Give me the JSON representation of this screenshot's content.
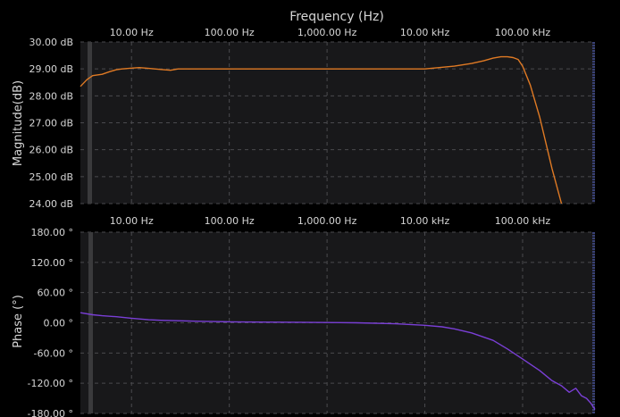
{
  "chart_data": [
    {
      "type": "line",
      "xlabel": "Frequency (Hz)",
      "ylabel": "Magnitude(dB)",
      "xscale": "log",
      "xlim": [
        3,
        550000
      ],
      "ylim": [
        24,
        30
      ],
      "grid": true,
      "x_ticks": [
        10,
        100,
        1000,
        10000,
        100000
      ],
      "x_tick_labels": [
        "10.00 Hz",
        "100.00 Hz",
        "1,000.00 Hz",
        "10.00 kHz",
        "100.00 kHz"
      ],
      "y_ticks": [
        30,
        29,
        28,
        27,
        26,
        25,
        24
      ],
      "y_tick_labels": [
        "30.00 dB",
        "29.00 dB",
        "28.00 dB",
        "27.00 dB",
        "26.00 dB",
        "25.00 dB",
        "24.00 dB"
      ],
      "series": [
        {
          "color": "#e07a24",
          "x": [
            3,
            3.5,
            4,
            5,
            6,
            7,
            8,
            10,
            12,
            15,
            20,
            25,
            30,
            40,
            50,
            70,
            100,
            200,
            500,
            1000,
            2000,
            5000,
            10000,
            20000,
            30000,
            40000,
            50000,
            60000,
            70000,
            80000,
            90000,
            100000,
            120000,
            150000,
            200000,
            250000
          ],
          "y": [
            28.35,
            28.6,
            28.75,
            28.8,
            28.9,
            28.97,
            29.0,
            29.03,
            29.05,
            29.02,
            28.98,
            28.95,
            29.0,
            29.0,
            29.0,
            29.0,
            29.0,
            29.0,
            29.0,
            29.0,
            29.0,
            29.0,
            29.0,
            29.1,
            29.2,
            29.3,
            29.4,
            29.45,
            29.45,
            29.42,
            29.35,
            29.1,
            28.4,
            27.2,
            25.3,
            24.0
          ]
        }
      ]
    },
    {
      "type": "line",
      "ylabel": "Phase (°)",
      "xscale": "log",
      "xlim": [
        3,
        550000
      ],
      "ylim": [
        -180,
        180
      ],
      "grid": true,
      "x_ticks": [
        10,
        100,
        1000,
        10000,
        100000
      ],
      "x_tick_labels": [
        "10.00 Hz",
        "100.00 Hz",
        "1,000.00 Hz",
        "10.00 kHz",
        "100.00 kHz"
      ],
      "y_ticks": [
        180,
        120,
        60,
        0,
        -60,
        -120,
        -180
      ],
      "y_tick_labels": [
        "180.00 °",
        "120.00 °",
        "60.00 °",
        "0.00 °",
        "-60.00 °",
        "-120.00 °",
        "-180.00 °"
      ],
      "series": [
        {
          "color": "#7a3fd6",
          "x": [
            3,
            4,
            5,
            7,
            10,
            15,
            20,
            30,
            50,
            70,
            100,
            200,
            500,
            1000,
            2000,
            5000,
            10000,
            15000,
            20000,
            30000,
            50000,
            70000,
            100000,
            150000,
            200000,
            250000,
            300000,
            350000,
            400000,
            450000,
            500000,
            550000
          ],
          "y": [
            20,
            16,
            14,
            12,
            9,
            6,
            5,
            4,
            3,
            2.5,
            2,
            1.5,
            1,
            0.5,
            0,
            -2,
            -5,
            -8,
            -12,
            -20,
            -35,
            -52,
            -72,
            -95,
            -115,
            -125,
            -138,
            -130,
            -145,
            -150,
            -160,
            -172
          ]
        }
      ]
    }
  ]
}
